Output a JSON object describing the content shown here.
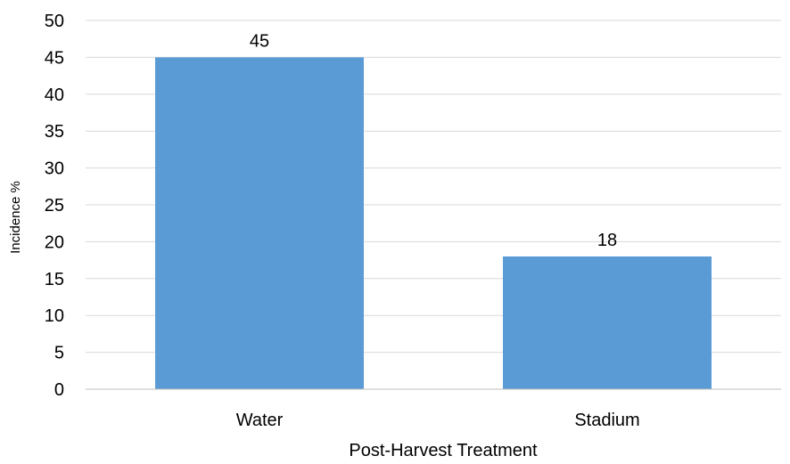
{
  "chart_data": {
    "type": "bar",
    "categories": [
      "Water",
      "Stadium"
    ],
    "values": [
      45,
      18
    ],
    "data_labels": [
      "45",
      "18"
    ],
    "title": "",
    "xlabel": "Post-Harvest Treatment",
    "ylabel": "Incidence %",
    "ylim": [
      0,
      50
    ],
    "yticks": [
      0,
      5,
      10,
      15,
      20,
      25,
      30,
      35,
      40,
      45,
      50
    ],
    "grid": true,
    "legend": "none",
    "bar_color": "#5b9bd5",
    "grid_color": "#d9d9d9",
    "axis_color": "#bfbfbf"
  }
}
